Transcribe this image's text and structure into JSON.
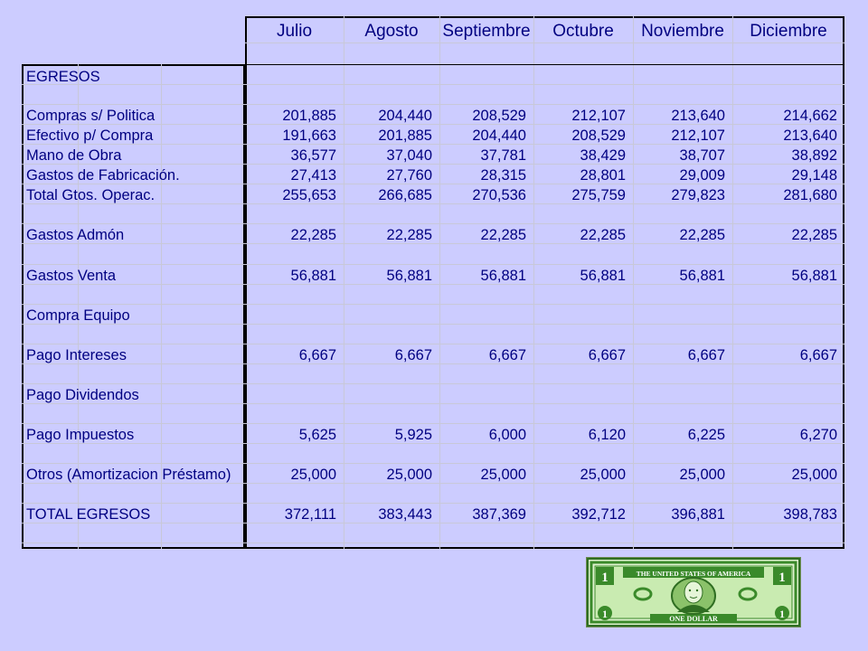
{
  "months": [
    "Julio",
    "Agosto",
    "Septiembre",
    "Octubre",
    "Noviembre",
    "Diciembre"
  ],
  "section_title": "EGRESOS",
  "rows": [
    {
      "label": "Compras s/ Politica",
      "values": [
        "201,885",
        "204,440",
        "208,529",
        "212,107",
        "213,640",
        "214,662"
      ]
    },
    {
      "label": "Efectivo p/ Compra",
      "values": [
        "191,663",
        "201,885",
        "204,440",
        "208,529",
        "212,107",
        "213,640"
      ]
    },
    {
      "label": "Mano de Obra",
      "values": [
        "36,577",
        "37,040",
        "37,781",
        "38,429",
        "38,707",
        "38,892"
      ]
    },
    {
      "label": "Gastos de Fabricación.",
      "values": [
        "27,413",
        "27,760",
        "28,315",
        "28,801",
        "29,009",
        "29,148"
      ]
    },
    {
      "label": "Total Gtos. Operac.",
      "values": [
        "255,653",
        "266,685",
        "270,536",
        "275,759",
        "279,823",
        "281,680"
      ]
    },
    {
      "label": "Gastos Admón",
      "values": [
        "22,285",
        "22,285",
        "22,285",
        "22,285",
        "22,285",
        "22,285"
      ]
    },
    {
      "label": "Gastos Venta",
      "values": [
        "56,881",
        "56,881",
        "56,881",
        "56,881",
        "56,881",
        "56,881"
      ]
    },
    {
      "label": "Compra Equipo",
      "values": [
        "",
        "",
        "",
        "",
        "",
        ""
      ]
    },
    {
      "label": "Pago Intereses",
      "values": [
        "6,667",
        "6,667",
        "6,667",
        "6,667",
        "6,667",
        "6,667"
      ]
    },
    {
      "label": "Pago Dividendos",
      "values": [
        "",
        "",
        "",
        "",
        "",
        ""
      ]
    },
    {
      "label": "Pago Impuestos",
      "values": [
        "5,625",
        "5,925",
        "6,000",
        "6,120",
        "6,225",
        "6,270"
      ]
    },
    {
      "label": "Otros (Amortizacion Préstamo)",
      "values": [
        "25,000",
        "25,000",
        "25,000",
        "25,000",
        "25,000",
        "25,000"
      ]
    },
    {
      "label": "TOTAL EGRESOS",
      "values": [
        "372,111",
        "383,443",
        "387,369",
        "392,712",
        "396,881",
        "398,783"
      ]
    }
  ],
  "bill": {
    "top_text": "THE UNITED STATES OF AMERICA",
    "bottom_text": "ONE DOLLAR",
    "denomination": "1",
    "colors": {
      "green": "#3a8a2a",
      "light_green": "#b8e0a0",
      "frame": "#2f6e22"
    }
  }
}
